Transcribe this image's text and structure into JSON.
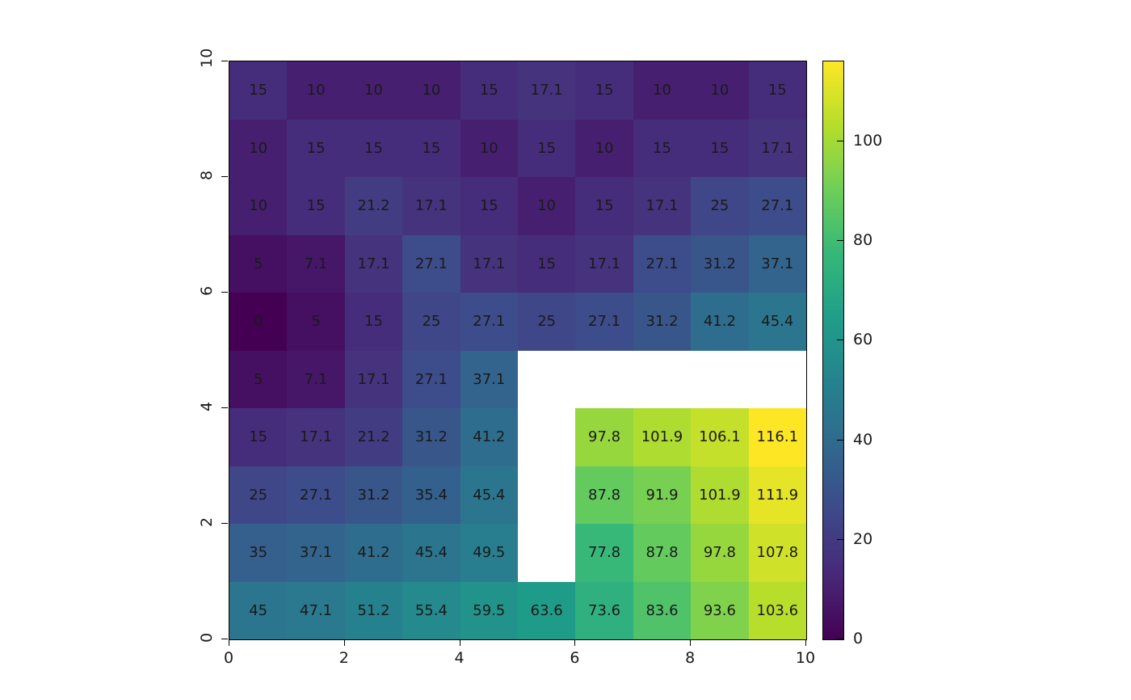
{
  "chart_data": {
    "type": "heatmap",
    "title": "",
    "xlabel": "",
    "ylabel": "",
    "xlim": [
      0,
      10
    ],
    "ylim": [
      0,
      10
    ],
    "zlim": [
      0,
      116.1
    ],
    "x_ticks": [
      "0",
      "2",
      "4",
      "6",
      "8",
      "10"
    ],
    "y_ticks": [
      "0",
      "2",
      "4",
      "6",
      "8",
      "10"
    ],
    "colorbar_ticks": [
      "0",
      "20",
      "40",
      "60",
      "80",
      "100"
    ],
    "palette": "viridis",
    "missing_color": "#ffffff",
    "viridis_stops": [
      "#440154",
      "#482878",
      "#3e4989",
      "#31688e",
      "#26828e",
      "#1f9e89",
      "#35b779",
      "#6ece58",
      "#b5de2b",
      "#fde725"
    ],
    "grid": true,
    "legend_position": "right",
    "rows_top_to_bottom": [
      [
        "15",
        "10",
        "10",
        "10",
        "15",
        "17.1",
        "15",
        "10",
        "10",
        "15"
      ],
      [
        "10",
        "15",
        "15",
        "15",
        "10",
        "15",
        "10",
        "15",
        "15",
        "17.1"
      ],
      [
        "10",
        "15",
        "21.2",
        "17.1",
        "15",
        "10",
        "15",
        "17.1",
        "25",
        "27.1"
      ],
      [
        "5",
        "7.1",
        "17.1",
        "27.1",
        "17.1",
        "15",
        "17.1",
        "27.1",
        "31.2",
        "37.1"
      ],
      [
        "0",
        "5",
        "15",
        "25",
        "27.1",
        "25",
        "27.1",
        "31.2",
        "41.2",
        "45.4"
      ],
      [
        "5",
        "7.1",
        "17.1",
        "27.1",
        "37.1",
        null,
        null,
        null,
        null,
        null
      ],
      [
        "15",
        "17.1",
        "21.2",
        "31.2",
        "41.2",
        null,
        "97.8",
        "101.9",
        "106.1",
        "116.1"
      ],
      [
        "25",
        "27.1",
        "31.2",
        "35.4",
        "45.4",
        null,
        "87.8",
        "91.9",
        "101.9",
        "111.9"
      ],
      [
        "35",
        "37.1",
        "41.2",
        "45.4",
        "49.5",
        null,
        "77.8",
        "87.8",
        "97.8",
        "107.8"
      ],
      [
        "45",
        "47.1",
        "51.2",
        "55.4",
        "59.5",
        "63.6",
        "73.6",
        "83.6",
        "93.6",
        "103.6"
      ]
    ]
  }
}
